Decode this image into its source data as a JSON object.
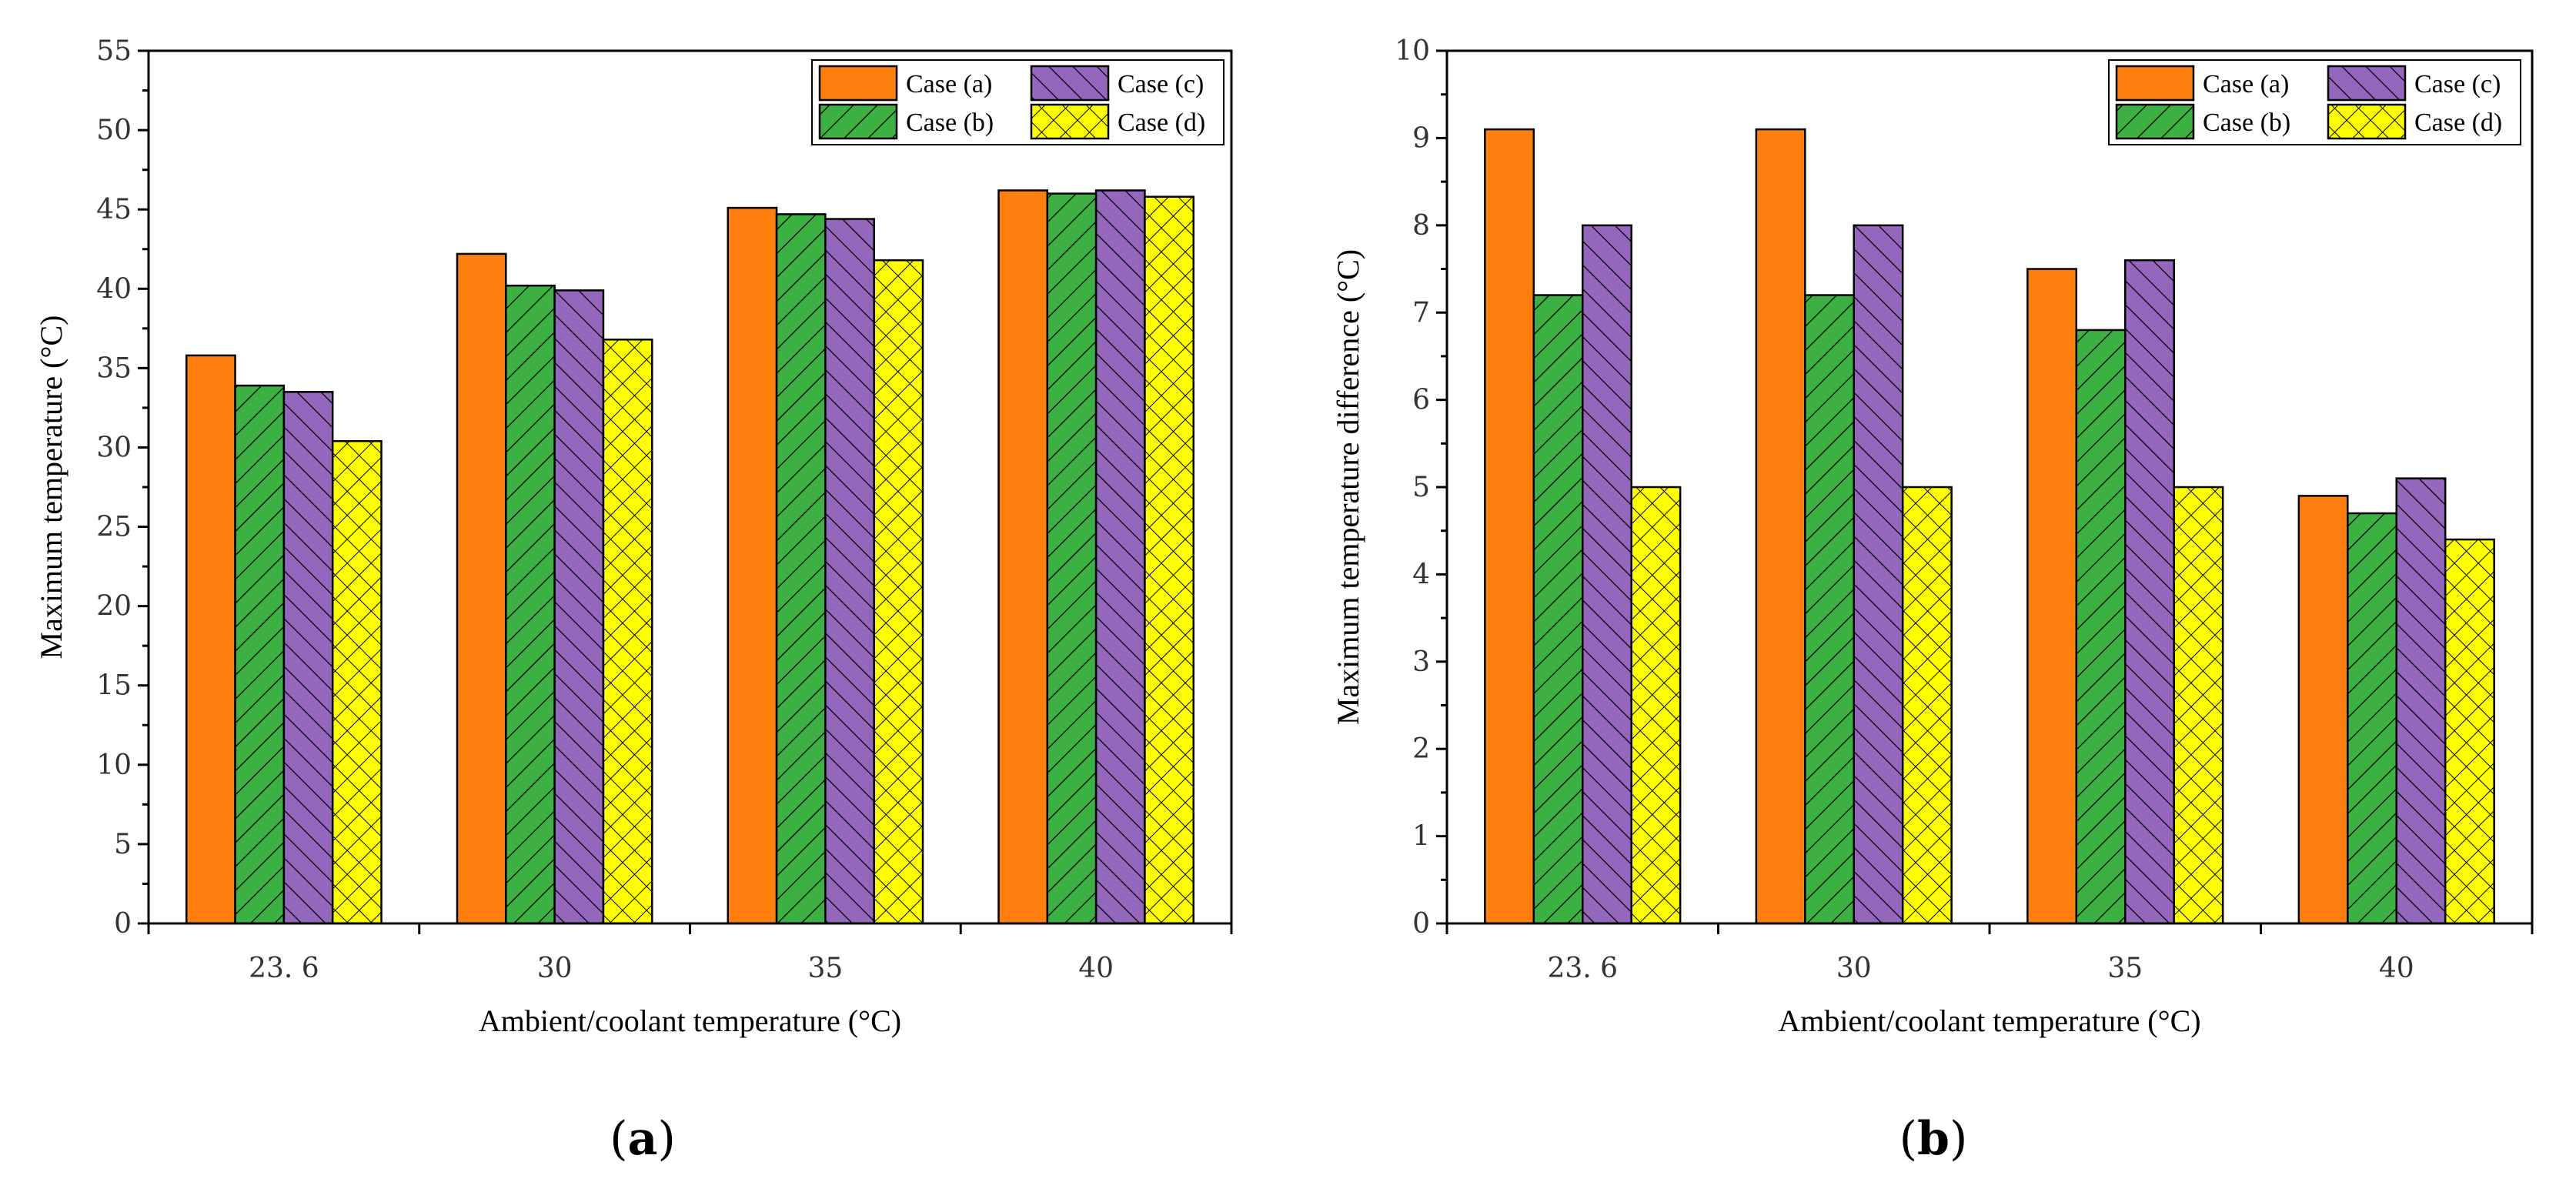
{
  "colors": {
    "case_a": "#ff7f0e",
    "case_b": "#3cb043",
    "case_c": "#9467bd",
    "case_d": "#ffff00"
  },
  "chart_data": [
    {
      "type": "bar",
      "panel_label": "a",
      "title": "",
      "xlabel": "Ambient/coolant temperature (°C)",
      "ylabel": "Maximum temperature (°C)",
      "categories": [
        "23. 6",
        "30",
        "35",
        "40"
      ],
      "ylim": [
        0,
        55
      ],
      "yticks": [
        0,
        5,
        10,
        15,
        20,
        25,
        30,
        35,
        40,
        45,
        50,
        55
      ],
      "yticklabels": [
        "0",
        "5",
        "10",
        "15",
        "20",
        "25",
        "30",
        "35",
        "40",
        "45",
        "50",
        "55"
      ],
      "legend_position": "top-right",
      "series": [
        {
          "name": "Case (a)",
          "pattern": "solid",
          "color_key": "case_a",
          "values": [
            35.8,
            42.2,
            45.1,
            46.2
          ]
        },
        {
          "name": "Case (b)",
          "pattern": "diag-up",
          "color_key": "case_b",
          "values": [
            33.9,
            40.2,
            44.7,
            46.0
          ]
        },
        {
          "name": "Case (c)",
          "pattern": "diag-down",
          "color_key": "case_c",
          "values": [
            33.5,
            39.9,
            44.4,
            46.2
          ]
        },
        {
          "name": "Case (d)",
          "pattern": "crosshatch",
          "color_key": "case_d",
          "values": [
            30.4,
            36.8,
            41.8,
            45.8
          ]
        }
      ]
    },
    {
      "type": "bar",
      "panel_label": "b",
      "title": "",
      "xlabel": "Ambient/coolant temperature (°C)",
      "ylabel": "Maximum temperature difference (°C)",
      "categories": [
        "23. 6",
        "30",
        "35",
        "40"
      ],
      "ylim": [
        0,
        10
      ],
      "yticks": [
        0,
        1,
        2,
        3,
        4,
        5,
        6,
        7,
        8,
        9,
        10
      ],
      "yticklabels": [
        "0",
        "1",
        "2",
        "3",
        "4",
        "5",
        "6",
        "7",
        "8",
        "9",
        "10"
      ],
      "legend_position": "top-right",
      "series": [
        {
          "name": "Case (a)",
          "pattern": "solid",
          "color_key": "case_a",
          "values": [
            9.1,
            9.1,
            7.5,
            4.9
          ]
        },
        {
          "name": "Case (b)",
          "pattern": "diag-up",
          "color_key": "case_b",
          "values": [
            7.2,
            7.2,
            6.8,
            4.7
          ]
        },
        {
          "name": "Case (c)",
          "pattern": "diag-down",
          "color_key": "case_c",
          "values": [
            8.0,
            8.0,
            7.6,
            5.1
          ]
        },
        {
          "name": "Case (d)",
          "pattern": "crosshatch",
          "color_key": "case_d",
          "values": [
            5.0,
            5.0,
            5.0,
            4.4
          ]
        }
      ]
    }
  ]
}
